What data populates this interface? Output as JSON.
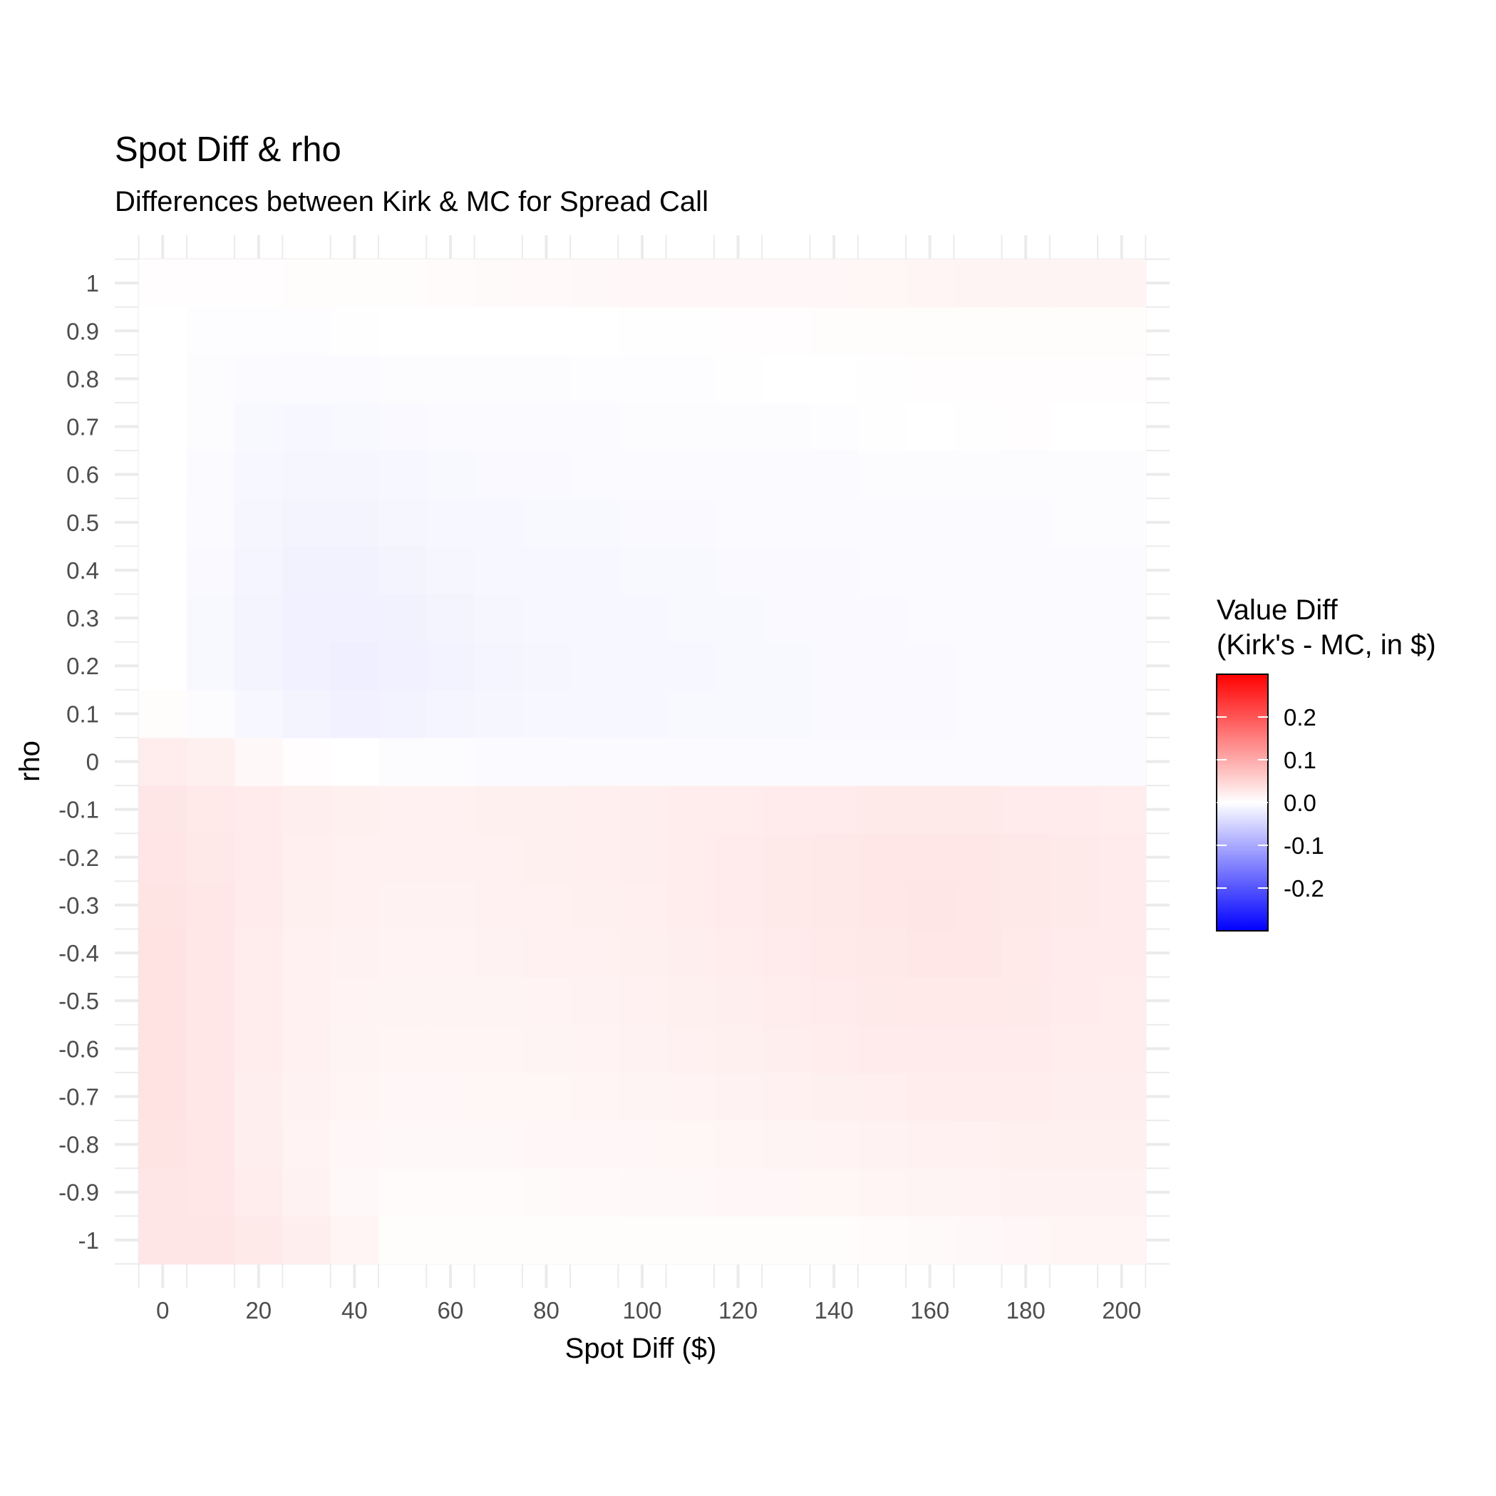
{
  "chart_data": {
    "type": "heatmap",
    "title": "Spot Diff & rho",
    "subtitle": "Differences between Kirk & MC for Spread Call",
    "xlabel": "Spot Diff ($)",
    "ylabel": "rho",
    "x": [
      0,
      10,
      20,
      30,
      40,
      50,
      60,
      70,
      80,
      90,
      100,
      110,
      120,
      130,
      140,
      150,
      160,
      170,
      180,
      190,
      200
    ],
    "y": [
      -1,
      -0.9,
      -0.8,
      -0.7,
      -0.6,
      -0.5,
      -0.4,
      -0.3,
      -0.2,
      -0.1,
      0,
      0.1,
      0.2,
      0.3,
      0.4,
      0.5,
      0.6,
      0.7,
      0.8,
      0.9,
      1
    ],
    "x_ticks": [
      "0",
      "20",
      "40",
      "60",
      "80",
      "100",
      "120",
      "140",
      "160",
      "180",
      "200"
    ],
    "y_ticks": [
      "-1",
      "-0.9",
      "-0.8",
      "-0.7",
      "-0.6",
      "-0.5",
      "-0.4",
      "-0.3",
      "-0.2",
      "-0.1",
      "0",
      "0.1",
      "0.2",
      "0.3",
      "0.4",
      "0.5",
      "0.6",
      "0.7",
      "0.8",
      "0.9",
      "1"
    ],
    "xlim": [
      -10,
      210
    ],
    "ylim": [
      -1.1,
      1.1
    ],
    "grid": true,
    "z": [
      [
        0.03,
        0.03,
        0.025,
        0.02,
        0.012,
        0.004,
        0.003,
        0.003,
        0.003,
        0.003,
        0.003,
        0.003,
        0.003,
        0.003,
        0.004,
        0.005,
        0.006,
        0.008,
        0.01,
        0.012,
        0.012
      ],
      [
        0.03,
        0.028,
        0.022,
        0.015,
        0.008,
        0.005,
        0.005,
        0.005,
        0.006,
        0.007,
        0.008,
        0.008,
        0.009,
        0.01,
        0.011,
        0.012,
        0.013,
        0.014,
        0.015,
        0.015,
        0.015
      ],
      [
        0.032,
        0.028,
        0.02,
        0.014,
        0.01,
        0.008,
        0.008,
        0.008,
        0.009,
        0.01,
        0.01,
        0.011,
        0.012,
        0.013,
        0.014,
        0.015,
        0.016,
        0.017,
        0.018,
        0.018,
        0.018
      ],
      [
        0.033,
        0.028,
        0.02,
        0.015,
        0.012,
        0.01,
        0.01,
        0.011,
        0.011,
        0.012,
        0.013,
        0.014,
        0.015,
        0.017,
        0.018,
        0.019,
        0.021,
        0.022,
        0.022,
        0.02,
        0.02
      ],
      [
        0.033,
        0.028,
        0.022,
        0.016,
        0.013,
        0.012,
        0.012,
        0.012,
        0.013,
        0.014,
        0.015,
        0.016,
        0.018,
        0.02,
        0.022,
        0.023,
        0.024,
        0.024,
        0.023,
        0.022,
        0.021
      ],
      [
        0.033,
        0.028,
        0.022,
        0.017,
        0.014,
        0.013,
        0.013,
        0.013,
        0.014,
        0.015,
        0.016,
        0.018,
        0.02,
        0.022,
        0.024,
        0.025,
        0.026,
        0.026,
        0.025,
        0.023,
        0.022
      ],
      [
        0.033,
        0.028,
        0.022,
        0.017,
        0.015,
        0.014,
        0.014,
        0.015,
        0.016,
        0.017,
        0.018,
        0.02,
        0.022,
        0.024,
        0.026,
        0.027,
        0.028,
        0.028,
        0.026,
        0.024,
        0.023
      ],
      [
        0.032,
        0.028,
        0.023,
        0.018,
        0.016,
        0.015,
        0.015,
        0.016,
        0.017,
        0.018,
        0.019,
        0.021,
        0.023,
        0.025,
        0.027,
        0.028,
        0.029,
        0.028,
        0.027,
        0.025,
        0.024
      ],
      [
        0.031,
        0.027,
        0.023,
        0.019,
        0.017,
        0.016,
        0.016,
        0.017,
        0.018,
        0.019,
        0.02,
        0.021,
        0.023,
        0.025,
        0.027,
        0.028,
        0.028,
        0.028,
        0.027,
        0.025,
        0.024
      ],
      [
        0.029,
        0.026,
        0.023,
        0.02,
        0.018,
        0.017,
        0.017,
        0.018,
        0.018,
        0.019,
        0.02,
        0.021,
        0.022,
        0.023,
        0.024,
        0.025,
        0.025,
        0.025,
        0.024,
        0.023,
        0.022
      ],
      [
        0.022,
        0.018,
        0.008,
        0.002,
        0.0,
        -0.003,
        -0.004,
        -0.005,
        -0.005,
        -0.006,
        -0.006,
        -0.006,
        -0.006,
        -0.006,
        -0.006,
        -0.006,
        -0.006,
        -0.006,
        -0.006,
        -0.006,
        -0.006
      ],
      [
        0.003,
        -0.004,
        -0.01,
        -0.013,
        -0.016,
        -0.014,
        -0.012,
        -0.011,
        -0.01,
        -0.009,
        -0.009,
        -0.008,
        -0.008,
        -0.008,
        -0.007,
        -0.007,
        -0.007,
        -0.006,
        -0.006,
        -0.006,
        -0.006
      ],
      [
        0.0,
        -0.008,
        -0.013,
        -0.017,
        -0.019,
        -0.016,
        -0.014,
        -0.012,
        -0.011,
        -0.01,
        -0.009,
        -0.009,
        -0.008,
        -0.008,
        -0.007,
        -0.007,
        -0.007,
        -0.006,
        -0.006,
        -0.006,
        -0.006
      ],
      [
        0.0,
        -0.008,
        -0.013,
        -0.016,
        -0.017,
        -0.015,
        -0.013,
        -0.011,
        -0.01,
        -0.009,
        -0.009,
        -0.008,
        -0.008,
        -0.007,
        -0.007,
        -0.007,
        -0.006,
        -0.006,
        -0.006,
        -0.006,
        -0.005
      ],
      [
        0.0,
        -0.007,
        -0.012,
        -0.015,
        -0.015,
        -0.013,
        -0.011,
        -0.01,
        -0.009,
        -0.009,
        -0.008,
        -0.008,
        -0.007,
        -0.007,
        -0.007,
        -0.006,
        -0.006,
        -0.006,
        -0.005,
        -0.005,
        -0.005
      ],
      [
        0.0,
        -0.006,
        -0.011,
        -0.013,
        -0.013,
        -0.011,
        -0.01,
        -0.009,
        -0.008,
        -0.008,
        -0.007,
        -0.007,
        -0.006,
        -0.006,
        -0.006,
        -0.005,
        -0.005,
        -0.005,
        -0.005,
        -0.004,
        -0.004
      ],
      [
        0.0,
        -0.005,
        -0.01,
        -0.011,
        -0.011,
        -0.009,
        -0.008,
        -0.007,
        -0.007,
        -0.006,
        -0.006,
        -0.005,
        -0.005,
        -0.005,
        -0.005,
        -0.004,
        -0.004,
        -0.004,
        -0.004,
        -0.003,
        -0.003
      ],
      [
        0.0,
        -0.004,
        -0.008,
        -0.009,
        -0.008,
        -0.007,
        -0.006,
        -0.005,
        -0.005,
        -0.005,
        -0.004,
        -0.004,
        -0.004,
        -0.003,
        -0.002,
        -0.001,
        0.0,
        0.001,
        0.002,
        0.0,
        0.0
      ],
      [
        0.0,
        -0.003,
        -0.005,
        -0.006,
        -0.005,
        -0.004,
        -0.004,
        -0.003,
        -0.003,
        -0.002,
        -0.002,
        -0.002,
        -0.001,
        0.0,
        0.0,
        0.001,
        0.002,
        0.002,
        0.002,
        0.002,
        0.002
      ],
      [
        0.0,
        -0.002,
        -0.002,
        -0.002,
        -0.001,
        0.0,
        0.0,
        0.0,
        0.0,
        0.0,
        0.001,
        0.001,
        0.002,
        0.002,
        0.003,
        0.003,
        0.003,
        0.004,
        0.004,
        0.004,
        0.004
      ],
      [
        0.002,
        0.002,
        0.002,
        0.003,
        0.003,
        0.004,
        0.005,
        0.006,
        0.007,
        0.008,
        0.009,
        0.009,
        0.01,
        0.01,
        0.01,
        0.011,
        0.012,
        0.013,
        0.013,
        0.013,
        0.013
      ]
    ],
    "legend": {
      "title_line1": "Value Diff",
      "title_line2": "(Kirk's - MC, in $)",
      "breaks": [
        "0.2",
        "0.1",
        "0.0",
        "-0.1",
        "-0.2"
      ],
      "break_values": [
        0.2,
        0.1,
        0.0,
        -0.1,
        -0.2
      ],
      "limits": [
        -0.3,
        0.3
      ],
      "position": "right",
      "low_color": "#0000ff",
      "mid_color": "#ffffff",
      "high_color": "#ff0000"
    },
    "colors": {
      "grid": "#ebebeb",
      "tick_text": "#4d4d4d",
      "text": "#000000"
    }
  }
}
